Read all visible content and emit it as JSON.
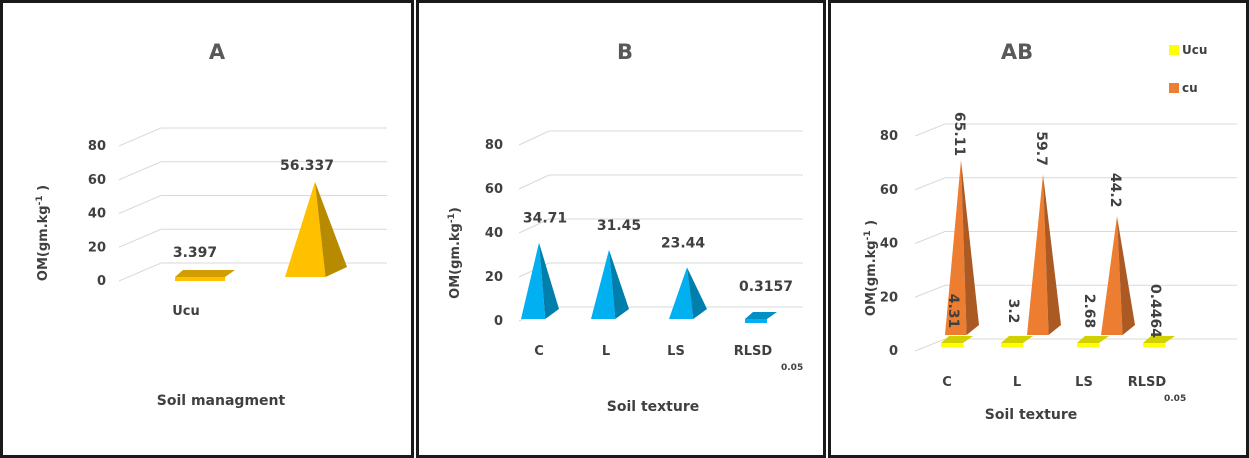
{
  "chart_data": [
    {
      "type": "bar",
      "title": "A",
      "xlabel": "Soil managment",
      "ylabel": "OM(gm.kg",
      "ylabel_sup": "-1",
      "ylabel_close": " )",
      "ylim": [
        0,
        80
      ],
      "yticks": [
        "0",
        "20",
        "40",
        "60",
        "80"
      ],
      "categories": [
        "Ucu",
        ""
      ],
      "values": [
        3.397,
        56.337
      ],
      "labels": [
        "3.397",
        "56.337"
      ],
      "colors": [
        "#ffc000",
        "#ffc000"
      ]
    },
    {
      "type": "bar",
      "title": "B",
      "xlabel": "Soil texture",
      "ylabel": "OM(gm.kg",
      "ylabel_sup": "-1",
      "ylabel_close": ")",
      "ylim": [
        0,
        80
      ],
      "yticks": [
        "0",
        "20",
        "40",
        "60",
        "80"
      ],
      "categories": [
        "C",
        "L",
        "LS",
        "RLSD"
      ],
      "category_subscript": "0.05",
      "values": [
        34.71,
        31.45,
        23.44,
        0.3157
      ],
      "labels": [
        "34.71",
        "31.45",
        "23.44",
        "0.3157"
      ],
      "colors": [
        "#00b0f0",
        "#00b0f0",
        "#00b0f0",
        "#00b0f0"
      ]
    },
    {
      "type": "bar",
      "title": "AB",
      "xlabel": "Soil texture",
      "ylabel": "OM(gm.kg",
      "ylabel_sup": "-1",
      "ylabel_close": " )",
      "ylim": [
        0,
        80
      ],
      "yticks": [
        "0",
        "20",
        "40",
        "60",
        "80"
      ],
      "categories": [
        "C",
        "L",
        "LS",
        "RLSD"
      ],
      "category_subscript": "0.05",
      "legend_position": "top-right",
      "series": [
        {
          "name": "Ucu",
          "color": "#ffff00",
          "values": [
            4.31,
            3.2,
            2.68,
            0.4464
          ],
          "labels": [
            "4.31",
            "3.2",
            "2.68",
            "0.4464"
          ]
        },
        {
          "name": "cu",
          "color": "#ed7d31",
          "values": [
            65.11,
            59.7,
            44.2,
            null
          ],
          "labels": [
            "65.11",
            "59.7",
            "44.2",
            ""
          ]
        }
      ]
    }
  ]
}
